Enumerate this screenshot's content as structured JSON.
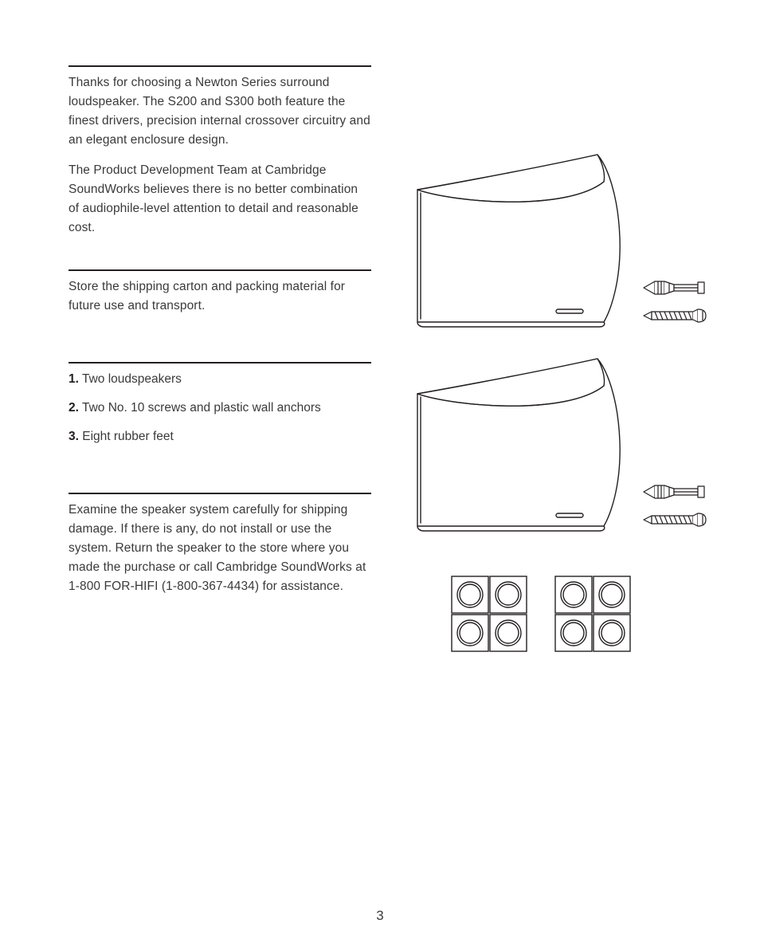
{
  "page_number": "3",
  "text_color": "#3a3a3a",
  "rule_color": "#231f20",
  "line_stroke": "#231f20",
  "intro": {
    "p1": "Thanks for choosing a Newton Series surround loudspeaker. The S200 and S300 both feature the finest drivers, precision internal crossover circuitry and an elegant enclosure design.",
    "p2": "The Product Development Team at Cambridge SoundWorks believes there is no better combination of audiophile-level attention to detail and reasonable cost."
  },
  "storage": {
    "p1": "Store the shipping carton and packing material for future use and transport."
  },
  "contents": {
    "items": [
      {
        "num": "1.",
        "text": " Two loudspeakers"
      },
      {
        "num": "2.",
        "text": " Two No. 10 screws and plastic wall anchors"
      },
      {
        "num": "3.",
        "text": " Eight rubber feet"
      }
    ]
  },
  "inspect": {
    "p1": "Examine the speaker system carefully for shipping damage. If there is any, do not install or use the system. Return the speaker to the store where you made the purchase or call Cambridge SoundWorks at 1-800 FOR-HIFI (1-800-367-4434) for assistance."
  },
  "diagram": {
    "stroke": "#231f20",
    "stroke_width": 1.4,
    "fill": "#ffffff"
  }
}
